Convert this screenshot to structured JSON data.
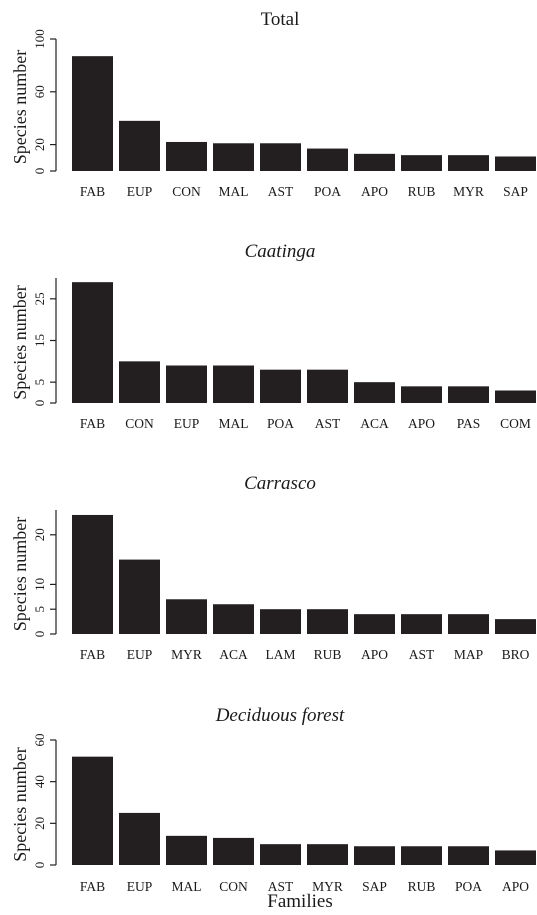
{
  "xlabel": "Families",
  "colors": {
    "bar": "#231f20",
    "axis": "#231f20",
    "text": "#1a1a1a"
  },
  "chart_data": [
    {
      "type": "bar",
      "title": "Total",
      "title_italic": false,
      "ylabel": "Species number",
      "categories": [
        "FAB",
        "EUP",
        "CON",
        "MAL",
        "AST",
        "POA",
        "APO",
        "RUB",
        "MYR",
        "SAP"
      ],
      "values": [
        87,
        38,
        22,
        21,
        21,
        17,
        13,
        12,
        12,
        11
      ],
      "ylim": [
        0,
        100
      ],
      "yticks": [
        0,
        20,
        60,
        100
      ],
      "grid": false
    },
    {
      "type": "bar",
      "title": "Caatinga",
      "title_italic": true,
      "ylabel": "Species number",
      "categories": [
        "FAB",
        "CON",
        "EUP",
        "MAL",
        "POA",
        "AST",
        "ACA",
        "APO",
        "PAS",
        "COM"
      ],
      "values": [
        29,
        10,
        9,
        9,
        8,
        8,
        5,
        4,
        4,
        3
      ],
      "ylim": [
        0,
        30
      ],
      "yticks": [
        0,
        5,
        15,
        25
      ],
      "grid": false
    },
    {
      "type": "bar",
      "title": "Carrasco",
      "title_italic": true,
      "ylabel": "Species number",
      "categories": [
        "FAB",
        "EUP",
        "MYR",
        "ACA",
        "LAM",
        "RUB",
        "APO",
        "AST",
        "MAP",
        "BRO"
      ],
      "values": [
        24,
        15,
        7,
        6,
        5,
        5,
        4,
        4,
        4,
        3
      ],
      "ylim": [
        0,
        25
      ],
      "yticks": [
        0,
        5,
        10,
        20
      ],
      "grid": false
    },
    {
      "type": "bar",
      "title": "Deciduous forest",
      "title_italic": true,
      "ylabel": "Species number",
      "categories": [
        "FAB",
        "EUP",
        "MAL",
        "CON",
        "AST",
        "MYR",
        "SAP",
        "RUB",
        "POA",
        "APO"
      ],
      "values": [
        52,
        25,
        14,
        13,
        10,
        10,
        9,
        9,
        9,
        7
      ],
      "ylim": [
        0,
        60
      ],
      "yticks": [
        0,
        20,
        40,
        60
      ],
      "grid": false
    }
  ]
}
